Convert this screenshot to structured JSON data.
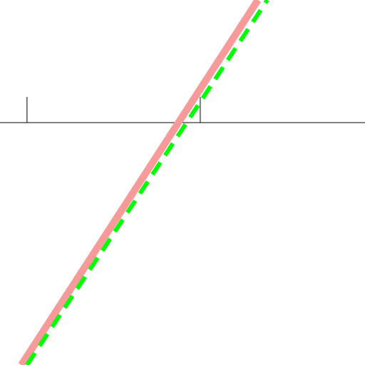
{
  "chart_data": {
    "type": "line",
    "xlim": [
      -0.156,
      1.951
    ],
    "ylim": [
      -1.4,
      0.708
    ],
    "xticks": [
      0,
      1
    ],
    "series": [
      {
        "color": "#f99a9a",
        "x": [
          -0.033,
          1.333
        ],
        "values": [
          -1.4,
          0.708
        ]
      },
      {
        "color": "#00ff00",
        "x": [
          0,
          1.387
        ],
        "values": [
          -1.4,
          0.708
        ]
      }
    ]
  }
}
